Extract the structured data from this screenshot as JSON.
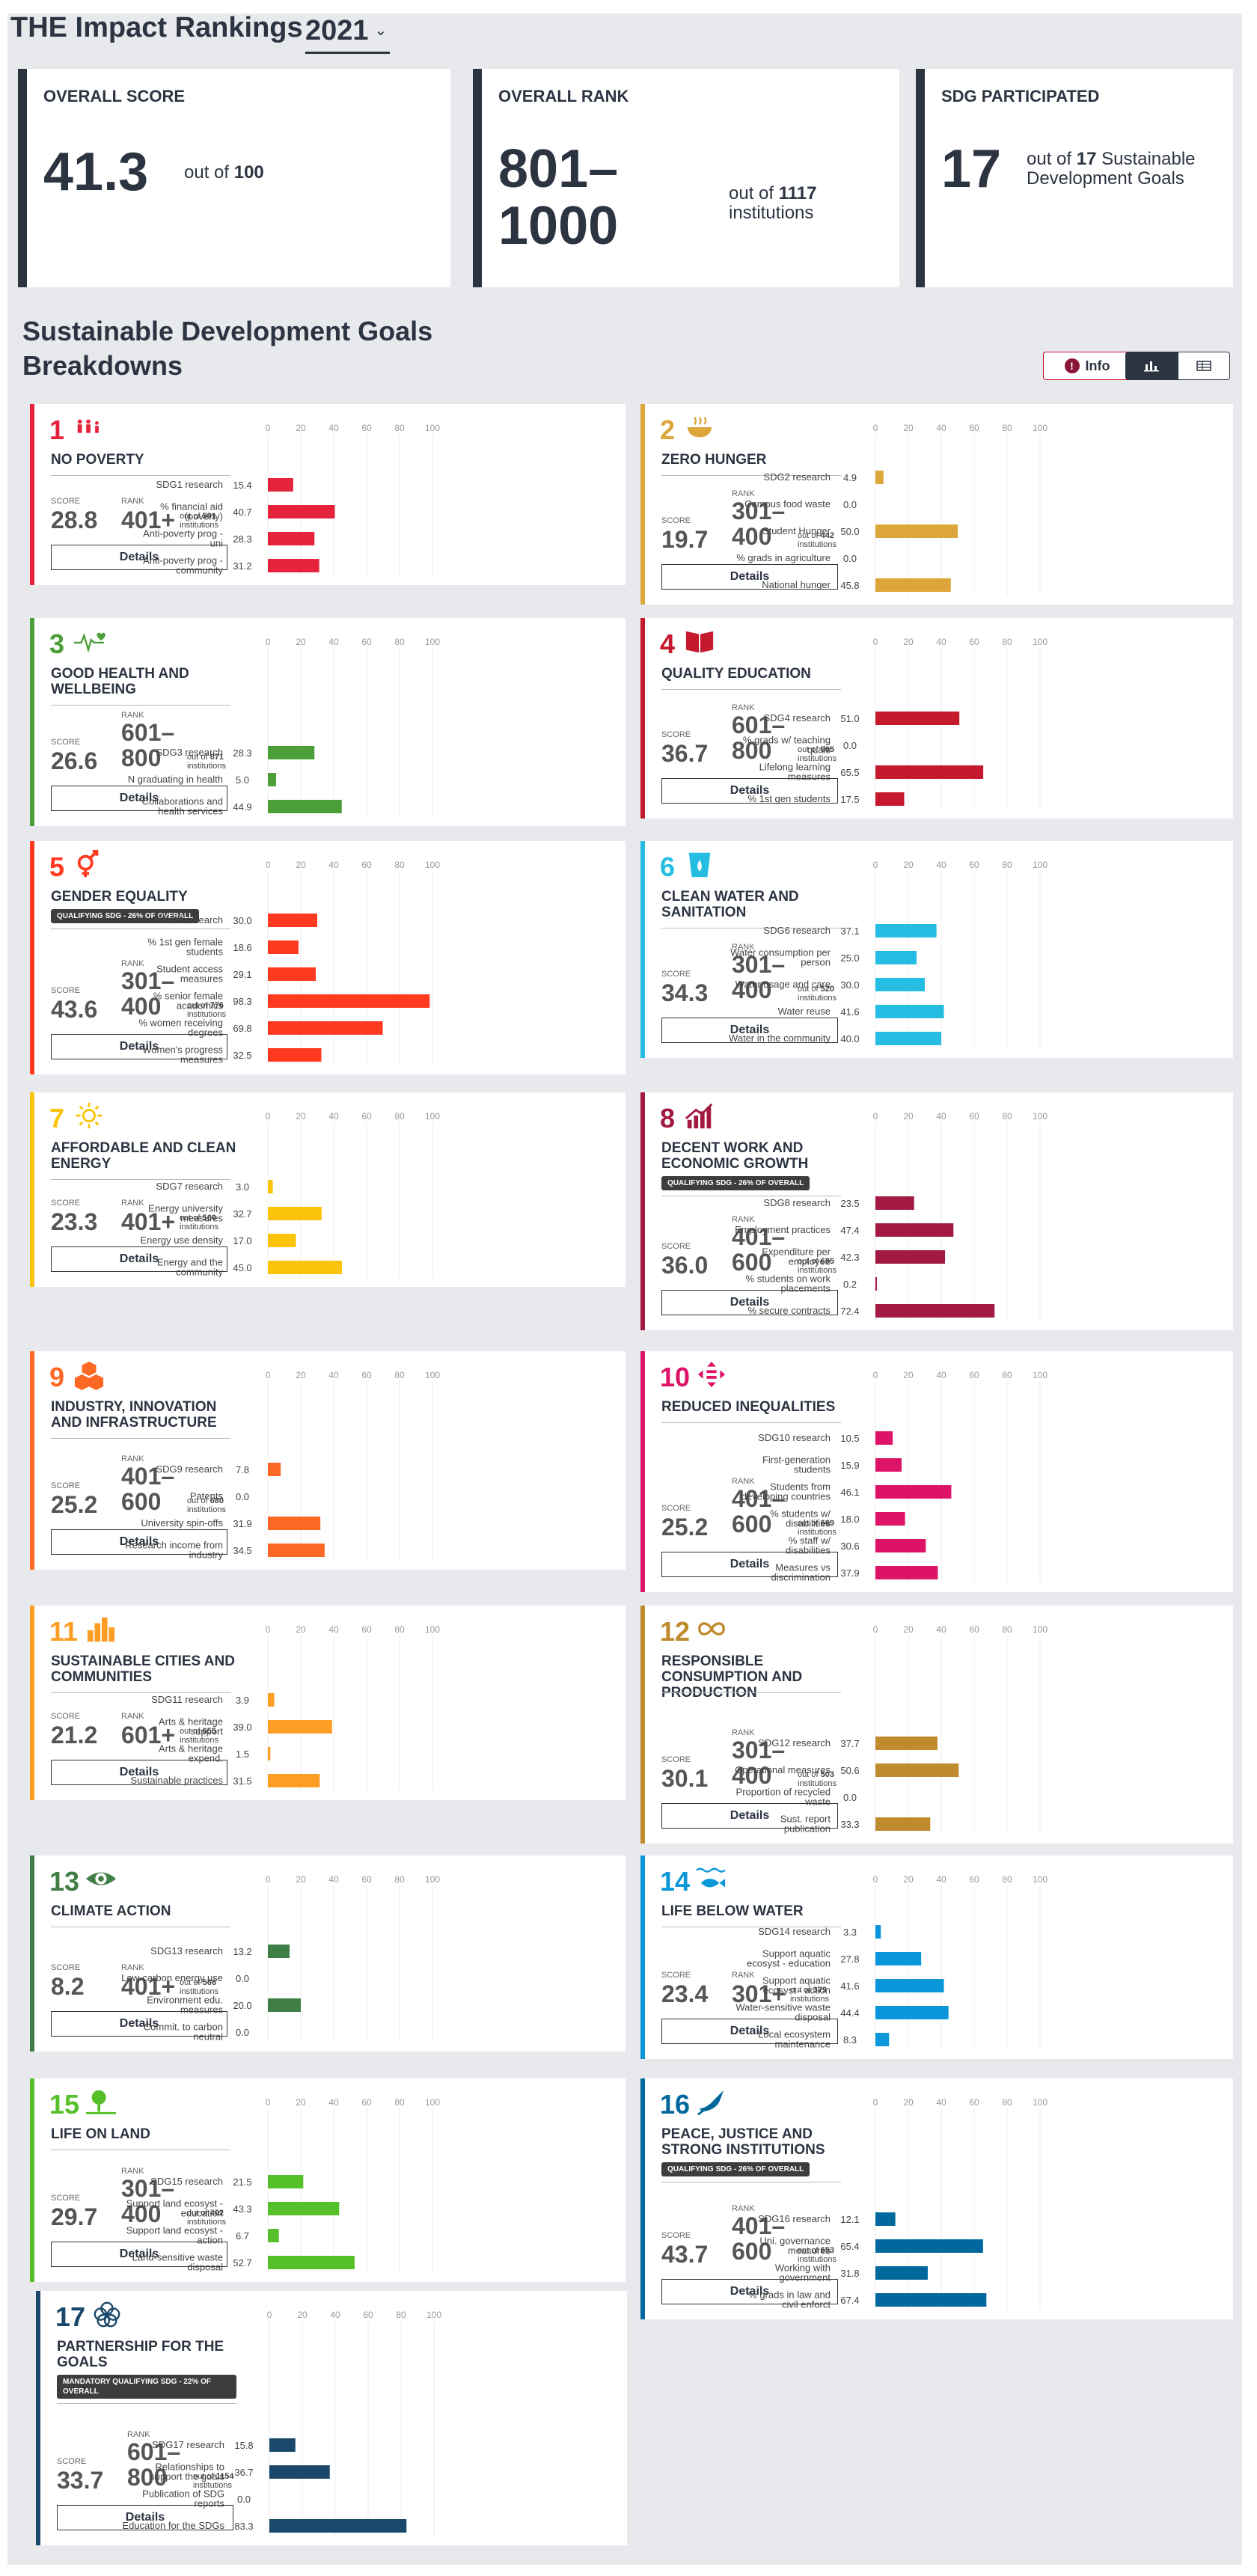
{
  "header": {
    "title": "THE Impact Rankings",
    "year": "2021",
    "overall_score": {
      "label": "OVERALL SCORE",
      "value": "41.3",
      "out_of_prefix": "out of",
      "out_of_value": "100"
    },
    "overall_rank": {
      "label": "OVERALL RANK",
      "value_line1": "801–",
      "value_line2": "1000",
      "out_of_prefix": "out of",
      "out_of_value": "1117",
      "out_of_suffix": "institutions"
    },
    "sdg_participated": {
      "label": "SDG PARTICIPATED",
      "value": "17",
      "out_of_prefix": "out of",
      "out_of_value": "17",
      "out_of_suffix": "Sustainable Development Goals"
    }
  },
  "breakdown": {
    "title": "Sustainable Development Goals Breakdowns",
    "info_label": "Info",
    "chart_view_icon": "bar-chart-icon",
    "table_view_icon": "table-icon"
  },
  "labels": {
    "score": "SCORE",
    "rank": "RANK",
    "out_of": "out of",
    "institutions": "institutions",
    "details": "Details"
  },
  "axis_ticks": [
    "0",
    "20",
    "40",
    "60",
    "80",
    "100"
  ],
  "chart_data": [
    {
      "type": "bar",
      "sdg": "1",
      "name": "NO POVERTY",
      "color": "#e5243b",
      "icon": "people-icon",
      "score": "28.8",
      "rank": "401+",
      "out_of": "591",
      "categories": [
        "SDG1 research",
        "% financial aid (poverty)",
        "Anti-poverty prog - uni",
        "Anti-poverty prog - community"
      ],
      "values": [
        15.4,
        40.7,
        28.3,
        31.2
      ],
      "xlim": [
        0,
        100
      ]
    },
    {
      "type": "bar",
      "sdg": "2",
      "name": "ZERO HUNGER",
      "color": "#dda63a",
      "icon": "bowl-icon",
      "score": "19.7",
      "rank": "301–400",
      "out_of": "442",
      "categories": [
        "SDG2 research",
        "Campus food waste",
        "Student Hunger",
        "% grads in agriculture",
        "National hunger"
      ],
      "values": [
        4.9,
        0.0,
        50.0,
        0.0,
        45.8
      ],
      "xlim": [
        0,
        100
      ]
    },
    {
      "type": "bar",
      "sdg": "3",
      "name": "GOOD HEALTH AND WELLBEING",
      "color": "#4c9f38",
      "icon": "heartbeat-icon",
      "score": "26.6",
      "rank": "601–800",
      "out_of": "871",
      "categories": [
        "SDG3 research",
        "N graduating in health",
        "Collaborations and health services"
      ],
      "values": [
        28.3,
        5.0,
        44.9
      ],
      "xlim": [
        0,
        100
      ]
    },
    {
      "type": "bar",
      "sdg": "4",
      "name": "QUALITY EDUCATION",
      "color": "#c5192d",
      "icon": "book-icon",
      "score": "36.7",
      "rank": "601–800",
      "out_of": "965",
      "categories": [
        "SDG4 research",
        "% grads w/ teaching quals",
        "Lifelong learning measures",
        "% 1st gen students"
      ],
      "values": [
        51.0,
        0.0,
        65.5,
        17.5
      ],
      "xlim": [
        0,
        100
      ]
    },
    {
      "type": "bar",
      "sdg": "5",
      "name": "GENDER EQUALITY",
      "badge": "QUALIFYING SDG - 26% OF OVERALL",
      "color": "#ff3a21",
      "icon": "gender-icon",
      "score": "43.6",
      "rank": "301–400",
      "out_of": "776",
      "categories": [
        "SDG5 research",
        "% 1st gen female students",
        "Student access measures",
        "% senior female academics",
        "% women receiving degrees",
        "Women's progress measures"
      ],
      "values": [
        30.0,
        18.6,
        29.1,
        98.3,
        69.8,
        32.5
      ],
      "xlim": [
        0,
        100
      ]
    },
    {
      "type": "bar",
      "sdg": "6",
      "name": "CLEAN WATER AND SANITATION",
      "color": "#26bde2",
      "icon": "water-drop-icon",
      "score": "34.3",
      "rank": "301–400",
      "out_of": "520",
      "categories": [
        "SDG6 research",
        "Water consumption per person",
        "Water usage and care",
        "Water reuse",
        "Water in the community"
      ],
      "values": [
        37.1,
        25.0,
        30.0,
        41.6,
        40.0
      ],
      "xlim": [
        0,
        100
      ]
    },
    {
      "type": "bar",
      "sdg": "7",
      "name": "AFFORDABLE AND CLEAN ENERGY",
      "color": "#fcc30b",
      "icon": "sun-icon",
      "score": "23.3",
      "rank": "401+",
      "out_of": "560",
      "categories": [
        "SDG7 research",
        "Energy university measures",
        "Energy use density",
        "Energy and the community"
      ],
      "values": [
        3.0,
        32.7,
        17.0,
        45.0
      ],
      "xlim": [
        0,
        100
      ]
    },
    {
      "type": "bar",
      "sdg": "8",
      "name": "DECENT WORK AND ECONOMIC GROWTH",
      "badge": "QUALIFYING SDG - 26% OF OVERALL",
      "color": "#a21942",
      "icon": "growth-chart-icon",
      "score": "36.0",
      "rank": "401–600",
      "out_of": "685",
      "categories": [
        "SDG8 research",
        "Employment practices",
        "Expenditure per employee",
        "% students on work placements",
        "% secure contracts"
      ],
      "values": [
        23.5,
        47.4,
        42.3,
        0.2,
        72.4
      ],
      "xlim": [
        0,
        100
      ]
    },
    {
      "type": "bar",
      "sdg": "9",
      "name": "INDUSTRY, INNOVATION AND INFRASTRUCTURE",
      "color": "#fd6925",
      "icon": "cubes-icon",
      "score": "25.2",
      "rank": "401–600",
      "out_of": "680",
      "categories": [
        "SDG9 research",
        "Patents",
        "University spin-offs",
        "Research income from industry"
      ],
      "values": [
        7.8,
        0.0,
        31.9,
        34.5
      ],
      "xlim": [
        0,
        100
      ]
    },
    {
      "type": "bar",
      "sdg": "10",
      "name": "REDUCED INEQUALITIES",
      "color": "#dd1367",
      "icon": "equality-arrows-icon",
      "score": "25.2",
      "rank": "401–600",
      "out_of": "669",
      "categories": [
        "SDG10 research",
        "First-generation students",
        "Students from developing countries",
        "% students w/ disabilities",
        "% staff w/ disabilities",
        "Measures vs discrimination"
      ],
      "values": [
        10.5,
        15.9,
        46.1,
        18.0,
        30.6,
        37.9
      ],
      "xlim": [
        0,
        100
      ]
    },
    {
      "type": "bar",
      "sdg": "11",
      "name": "SUSTAINABLE CITIES AND COMMUNITIES",
      "color": "#fd9d24",
      "icon": "city-icon",
      "score": "21.2",
      "rank": "601+",
      "out_of": "655",
      "categories": [
        "SDG11 research",
        "Arts & heritage support",
        "Arts & heritage expend.",
        "Sustainable practices"
      ],
      "values": [
        3.9,
        39.0,
        1.5,
        31.5
      ],
      "xlim": [
        0,
        100
      ]
    },
    {
      "type": "bar",
      "sdg": "12",
      "name": "RESPONSIBLE CONSUMPTION AND PRODUCTION",
      "color": "#bf8b2e",
      "icon": "infinity-icon",
      "score": "30.1",
      "rank": "301–400",
      "out_of": "503",
      "categories": [
        "SDG12 research",
        "Operational measures",
        "Proportion of recycled waste",
        "Sust. report publication"
      ],
      "values": [
        37.7,
        50.6,
        0.0,
        33.3
      ],
      "xlim": [
        0,
        100
      ]
    },
    {
      "type": "bar",
      "sdg": "13",
      "name": "CLIMATE ACTION",
      "color": "#3f7e44",
      "icon": "eye-globe-icon",
      "score": "8.2",
      "rank": "401+",
      "out_of": "566",
      "categories": [
        "SDG13 research",
        "Low-carbon energy use",
        "Environment edu. measures",
        "Commit. to carbon neutral"
      ],
      "values": [
        13.2,
        0.0,
        20.0,
        0.0
      ],
      "xlim": [
        0,
        100
      ]
    },
    {
      "type": "bar",
      "sdg": "14",
      "name": "LIFE BELOW WATER",
      "color": "#0a97d9",
      "icon": "fish-icon",
      "score": "23.4",
      "rank": "301+",
      "out_of": "379",
      "categories": [
        "SDG14 research",
        "Support aquatic ecosyst - education",
        "Support aquatic ecosyst - action",
        "Water-sensitive waste disposal",
        "Local ecosystem maintenance"
      ],
      "values": [
        3.3,
        27.8,
        41.6,
        44.4,
        8.3
      ],
      "xlim": [
        0,
        100
      ]
    },
    {
      "type": "bar",
      "sdg": "15",
      "name": "LIFE ON LAND",
      "color": "#56c02b",
      "icon": "tree-icon",
      "score": "29.7",
      "rank": "301–400",
      "out_of": "402",
      "categories": [
        "SDG15 research",
        "Support land ecosyst - education",
        "Support land ecosyst - action",
        "Land-sensitive waste disposal"
      ],
      "values": [
        21.5,
        43.3,
        6.7,
        52.7
      ],
      "xlim": [
        0,
        100
      ]
    },
    {
      "type": "bar",
      "sdg": "16",
      "name": "PEACE, JUSTICE AND STRONG INSTITUTIONS",
      "badge": "QUALIFYING SDG - 26% OF OVERALL",
      "color": "#00689d",
      "icon": "dove-icon",
      "score": "43.7",
      "rank": "401–600",
      "out_of": "653",
      "categories": [
        "SDG16 research",
        "Uni. governance measures",
        "Working with government",
        "% grads in law and civil enforct"
      ],
      "values": [
        12.1,
        65.4,
        31.8,
        67.4
      ],
      "xlim": [
        0,
        100
      ]
    },
    {
      "type": "bar",
      "sdg": "17",
      "name": "PARTNERSHIP FOR THE GOALS",
      "badge": "MANDATORY QUALIFYING SDG - 22% OF OVERALL",
      "color": "#19486a",
      "icon": "circles-icon",
      "score": "33.7",
      "rank": "601–800",
      "out_of": "1154",
      "categories": [
        "SDG17 research",
        "Relationships to support the goals",
        "Publication of SDG reports",
        "Education for the SDGs"
      ],
      "values": [
        15.8,
        36.7,
        0.0,
        83.3
      ],
      "xlim": [
        0,
        100
      ]
    }
  ]
}
